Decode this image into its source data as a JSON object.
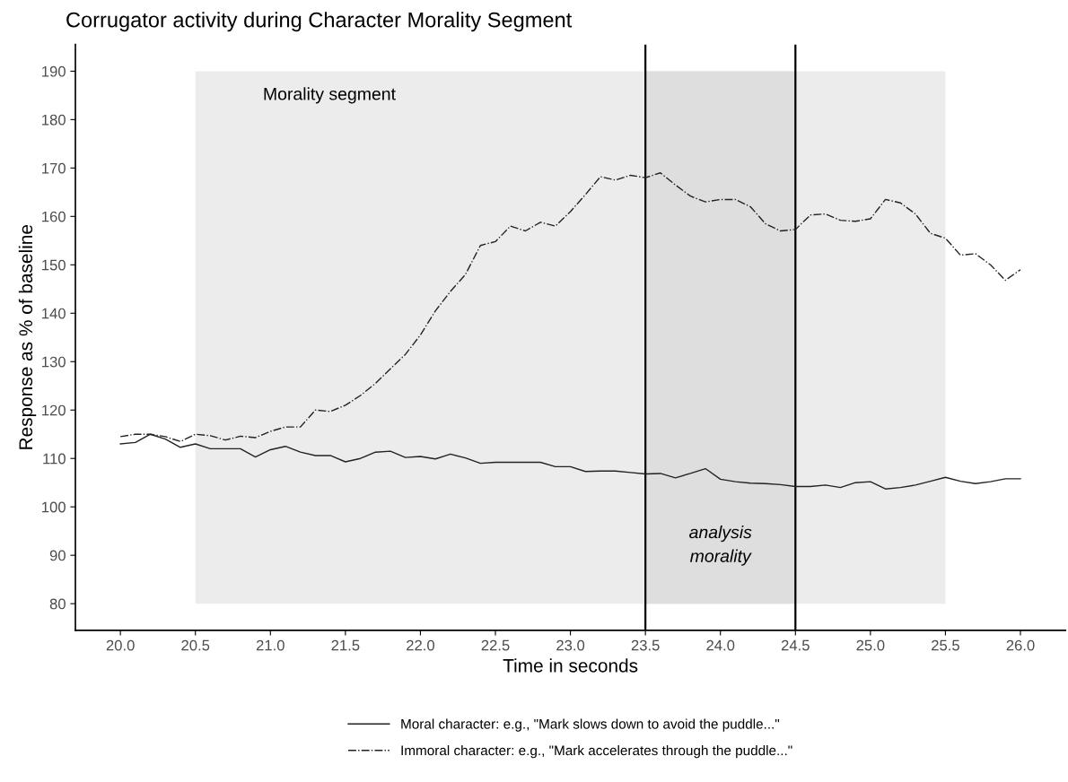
{
  "chart_data": {
    "type": "line",
    "title": "Corrugator activity during Character Morality Segment",
    "xlabel": "Time in seconds",
    "ylabel": "Response as % of baseline",
    "x": [
      20.0,
      20.1,
      20.2,
      20.3,
      20.4,
      20.5,
      20.6,
      20.7,
      20.8,
      20.9,
      21.0,
      21.1,
      21.2,
      21.3,
      21.4,
      21.5,
      21.6,
      21.7,
      21.8,
      21.9,
      22.0,
      22.1,
      22.2,
      22.3,
      22.4,
      22.5,
      22.6,
      22.7,
      22.8,
      22.9,
      23.0,
      23.1,
      23.2,
      23.3,
      23.4,
      23.5,
      23.6,
      23.7,
      23.8,
      23.9,
      24.0,
      24.1,
      24.2,
      24.3,
      24.4,
      24.5,
      24.6,
      24.7,
      24.8,
      24.9,
      25.0,
      25.1,
      25.2,
      25.3,
      25.4,
      25.5,
      25.6,
      25.7,
      25.8,
      25.9,
      26.0
    ],
    "series": [
      {
        "name": "Moral character: e.g., \"Mark slows down to avoid the puddle...\"",
        "color": "#222222",
        "line_style": "solid",
        "values": [
          113,
          113.3,
          115,
          114,
          112.3,
          113,
          112,
          112,
          112,
          110.3,
          111.8,
          112.5,
          111.3,
          110.6,
          110.6,
          109.3,
          110,
          111.3,
          111.5,
          110.2,
          110.4,
          109.9,
          110.9,
          110.1,
          109,
          109.2,
          109.2,
          109.2,
          109.2,
          108.3,
          108.3,
          107.3,
          107.4,
          107.4,
          107.1,
          106.8,
          106.9,
          106,
          106.9,
          107.9,
          105.7,
          105.2,
          104.9,
          104.8,
          104.6,
          104.2,
          104.2,
          104.5,
          104,
          105,
          105.2,
          103.7,
          104,
          104.5,
          105.3,
          106.1,
          105.3,
          104.8,
          105.2,
          105.8,
          105.8
        ]
      },
      {
        "name": "Immoral character: e.g., \"Mark accelerates through the puddle...\"",
        "color": "#222222",
        "line_style": "dashdot",
        "values": [
          114.5,
          115,
          115,
          114.5,
          113.5,
          115,
          114.7,
          113.8,
          114.6,
          114.3,
          115.6,
          116.5,
          116.5,
          120,
          119.7,
          121,
          123,
          125.5,
          128.5,
          131.5,
          135.5,
          140.5,
          144.5,
          148,
          154,
          154.8,
          158,
          157,
          158.8,
          158,
          161,
          164.5,
          168.2,
          167.5,
          168.5,
          168,
          169,
          166.5,
          164.2,
          163,
          163.5,
          163.5,
          162,
          158.5,
          157,
          157.3,
          160.3,
          160.5,
          159.2,
          159,
          159.5,
          163.5,
          162.8,
          160.5,
          156.5,
          155.5,
          152,
          152.3,
          150,
          146.8,
          149
        ]
      }
    ],
    "xlim": [
      19.7,
      26.3
    ],
    "ylim": [
      74.5,
      195.5
    ],
    "xticks": [
      {
        "value": 20.0,
        "label": "20.0"
      },
      {
        "value": 20.5,
        "label": "20.5"
      },
      {
        "value": 21.0,
        "label": "21.0"
      },
      {
        "value": 21.5,
        "label": "21.5"
      },
      {
        "value": 22.0,
        "label": "22.0"
      },
      {
        "value": 22.5,
        "label": "22.5"
      },
      {
        "value": 23.0,
        "label": "23.0"
      },
      {
        "value": 23.5,
        "label": "23.5"
      },
      {
        "value": 24.0,
        "label": "24.0"
      },
      {
        "value": 24.5,
        "label": "24.5"
      },
      {
        "value": 25.0,
        "label": "25.0"
      },
      {
        "value": 25.5,
        "label": "25.5"
      },
      {
        "value": 26.0,
        "label": "26.0"
      }
    ],
    "yticks": [
      80,
      90,
      100,
      110,
      120,
      130,
      140,
      150,
      160,
      170,
      180,
      190
    ],
    "bands": [
      {
        "axis": "x",
        "from": 20.5,
        "to": 25.5,
        "label": "Morality segment",
        "color": "#ececec"
      },
      {
        "axis": "x",
        "from": 23.5,
        "to": 24.5,
        "label": "analysis\nmorality",
        "color": "#dedede"
      }
    ],
    "ref_lines": [
      {
        "axis": "x",
        "value": 23.5,
        "color": "#000000",
        "line_style": "solid"
      },
      {
        "axis": "x",
        "value": 24.5,
        "color": "#000000",
        "line_style": "solid"
      }
    ],
    "grid": false,
    "legend": "bottom"
  }
}
